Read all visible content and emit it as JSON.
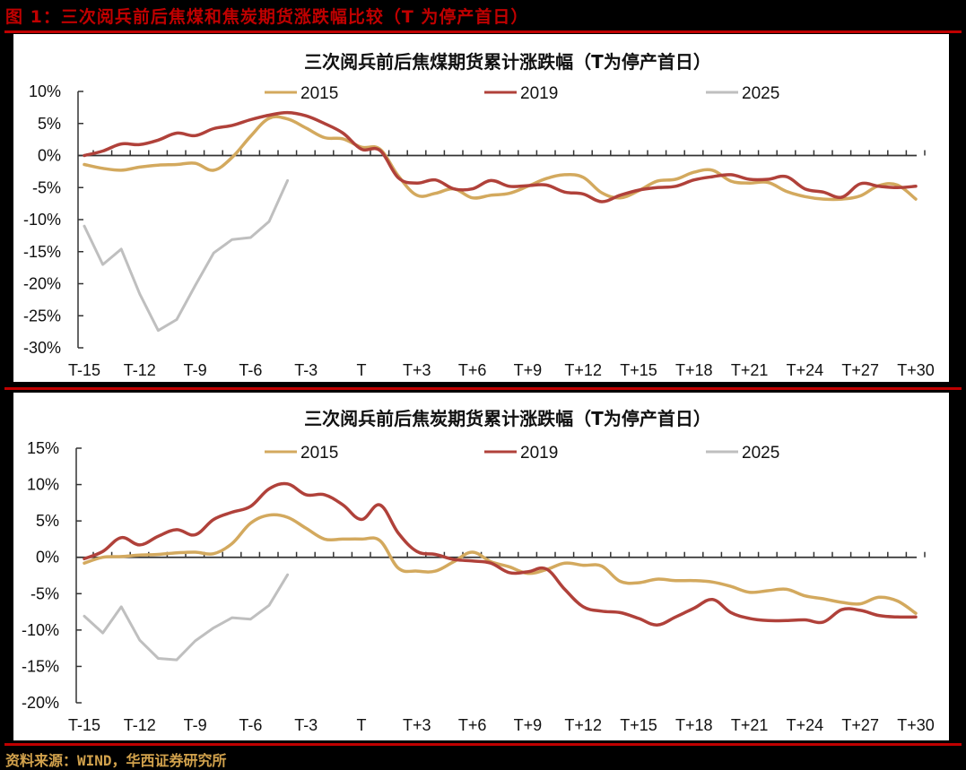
{
  "figure": {
    "title": "图 1：三次阅兵前后焦煤和焦炭期货涨跌幅比较（T 为停产首日）",
    "source": "资料来源：WIND，华西证券研究所"
  },
  "colors": {
    "s2015": "#d3a95e",
    "s2019": "#b0413a",
    "s2025": "#bfbfbf",
    "accent": "#c00000",
    "footer": "#d2a24c"
  },
  "legend": [
    "2015",
    "2019",
    "2025"
  ],
  "chart_data": [
    {
      "type": "line",
      "title": "三次阅兵前后焦煤期货累计涨跌幅（T为停产首日）",
      "xlabel": "",
      "ylabel": "",
      "categories": [
        "T-15",
        "T-14",
        "T-13",
        "T-12",
        "T-11",
        "T-10",
        "T-9",
        "T-8",
        "T-7",
        "T-6",
        "T-5",
        "T-4",
        "T-3",
        "T-2",
        "T-1",
        "T",
        "T+1",
        "T+2",
        "T+3",
        "T+4",
        "T+5",
        "T+6",
        "T+7",
        "T+8",
        "T+9",
        "T+10",
        "T+11",
        "T+12",
        "T+13",
        "T+14",
        "T+15",
        "T+16",
        "T+17",
        "T+18",
        "T+19",
        "T+20",
        "T+21",
        "T+22",
        "T+23",
        "T+24",
        "T+25",
        "T+26",
        "T+27",
        "T+28",
        "T+29",
        "T+30"
      ],
      "tick_labels": [
        "T-15",
        "T-12",
        "T-9",
        "T-6",
        "T-3",
        "T",
        "T+3",
        "T+6",
        "T+9",
        "T+12",
        "T+15",
        "T+18",
        "T+21",
        "T+24",
        "T+27",
        "T+30"
      ],
      "yticks": [
        "10%",
        "5%",
        "0%",
        "-5%",
        "-10%",
        "-15%",
        "-20%",
        "-25%",
        "-30%"
      ],
      "ylim": [
        -30,
        10
      ],
      "legend_position": "top",
      "series": [
        {
          "name": "2015",
          "values": [
            -1.4,
            -2.0,
            -2.3,
            -1.8,
            -1.5,
            -1.4,
            -1.2,
            -2.3,
            -0.3,
            3.0,
            5.8,
            5.7,
            4.3,
            2.8,
            2.6,
            1.3,
            1.0,
            -3.2,
            -6.2,
            -5.9,
            -5.2,
            -6.6,
            -6.2,
            -5.9,
            -4.8,
            -3.6,
            -3.0,
            -3.4,
            -5.8,
            -6.6,
            -5.5,
            -4.0,
            -3.7,
            -2.6,
            -2.3,
            -4.0,
            -4.3,
            -4.2,
            -5.6,
            -6.4,
            -6.8,
            -6.8,
            -6.3,
            -4.7,
            -4.6,
            -6.8
          ]
        },
        {
          "name": "2019",
          "values": [
            0.0,
            0.7,
            1.8,
            1.7,
            2.4,
            3.5,
            3.1,
            4.2,
            4.7,
            5.6,
            6.3,
            6.7,
            6.2,
            5.0,
            3.5,
            1.0,
            0.8,
            -3.5,
            -4.3,
            -3.8,
            -5.2,
            -5.2,
            -3.9,
            -4.8,
            -4.7,
            -4.6,
            -5.7,
            -6.0,
            -7.2,
            -6.2,
            -5.4,
            -5.0,
            -4.8,
            -3.8,
            -3.3,
            -3.0,
            -3.7,
            -3.7,
            -3.3,
            -5.2,
            -5.7,
            -6.5,
            -4.4,
            -4.8,
            -5.0,
            -4.8
          ]
        },
        {
          "name": "2025",
          "values": [
            -11.0,
            -17.0,
            -14.6,
            -21.6,
            -27.3,
            -25.6,
            -20.3,
            -15.2,
            -13.1,
            -12.8,
            -10.3,
            -3.9
          ]
        }
      ]
    },
    {
      "type": "line",
      "title": "三次阅兵前后焦炭期货累计涨跌幅（T为停产首日）",
      "xlabel": "",
      "ylabel": "",
      "categories": [
        "T-15",
        "T-14",
        "T-13",
        "T-12",
        "T-11",
        "T-10",
        "T-9",
        "T-8",
        "T-7",
        "T-6",
        "T-5",
        "T-4",
        "T-3",
        "T-2",
        "T-1",
        "T",
        "T+1",
        "T+2",
        "T+3",
        "T+4",
        "T+5",
        "T+6",
        "T+7",
        "T+8",
        "T+9",
        "T+10",
        "T+11",
        "T+12",
        "T+13",
        "T+14",
        "T+15",
        "T+16",
        "T+17",
        "T+18",
        "T+19",
        "T+20",
        "T+21",
        "T+22",
        "T+23",
        "T+24",
        "T+25",
        "T+26",
        "T+27",
        "T+28",
        "T+29",
        "T+30"
      ],
      "tick_labels": [
        "T-15",
        "T-12",
        "T-9",
        "T-6",
        "T-3",
        "T",
        "T+3",
        "T+6",
        "T+9",
        "T+12",
        "T+15",
        "T+18",
        "T+21",
        "T+24",
        "T+27",
        "T+30"
      ],
      "yticks": [
        "15%",
        "10%",
        "5%",
        "0%",
        "-5%",
        "-10%",
        "-15%",
        "-20%"
      ],
      "ylim": [
        -20,
        15
      ],
      "legend_position": "top",
      "series": [
        {
          "name": "2015",
          "values": [
            -0.8,
            0.0,
            0.1,
            0.3,
            0.4,
            0.6,
            0.7,
            0.5,
            1.9,
            4.7,
            5.8,
            5.5,
            4.0,
            2.5,
            2.5,
            2.5,
            2.3,
            -1.5,
            -1.9,
            -1.9,
            -0.6,
            0.7,
            -0.6,
            -1.3,
            -2.2,
            -1.7,
            -0.8,
            -1.1,
            -1.2,
            -3.3,
            -3.5,
            -3.0,
            -3.2,
            -3.2,
            -3.4,
            -4.0,
            -4.8,
            -4.6,
            -4.4,
            -5.3,
            -5.7,
            -6.2,
            -6.4,
            -5.5,
            -6.0,
            -7.7
          ]
        },
        {
          "name": "2019",
          "values": [
            -0.2,
            0.8,
            2.7,
            1.7,
            2.9,
            3.8,
            3.1,
            5.2,
            6.2,
            7.0,
            9.4,
            10.1,
            8.6,
            8.6,
            7.2,
            5.2,
            7.2,
            3.3,
            0.8,
            0.4,
            -0.3,
            -0.5,
            -0.8,
            -2.1,
            -2.0,
            -1.6,
            -4.4,
            -6.8,
            -7.4,
            -7.6,
            -8.4,
            -9.3,
            -8.2,
            -7.0,
            -5.8,
            -7.6,
            -8.4,
            -8.7,
            -8.7,
            -8.6,
            -8.9,
            -7.2,
            -7.3,
            -8.0,
            -8.2,
            -8.2
          ]
        },
        {
          "name": "2025",
          "values": [
            -8.1,
            -10.4,
            -6.8,
            -11.4,
            -13.9,
            -14.1,
            -11.5,
            -9.7,
            -8.3,
            -8.5,
            -6.6,
            -2.4
          ]
        }
      ]
    }
  ]
}
